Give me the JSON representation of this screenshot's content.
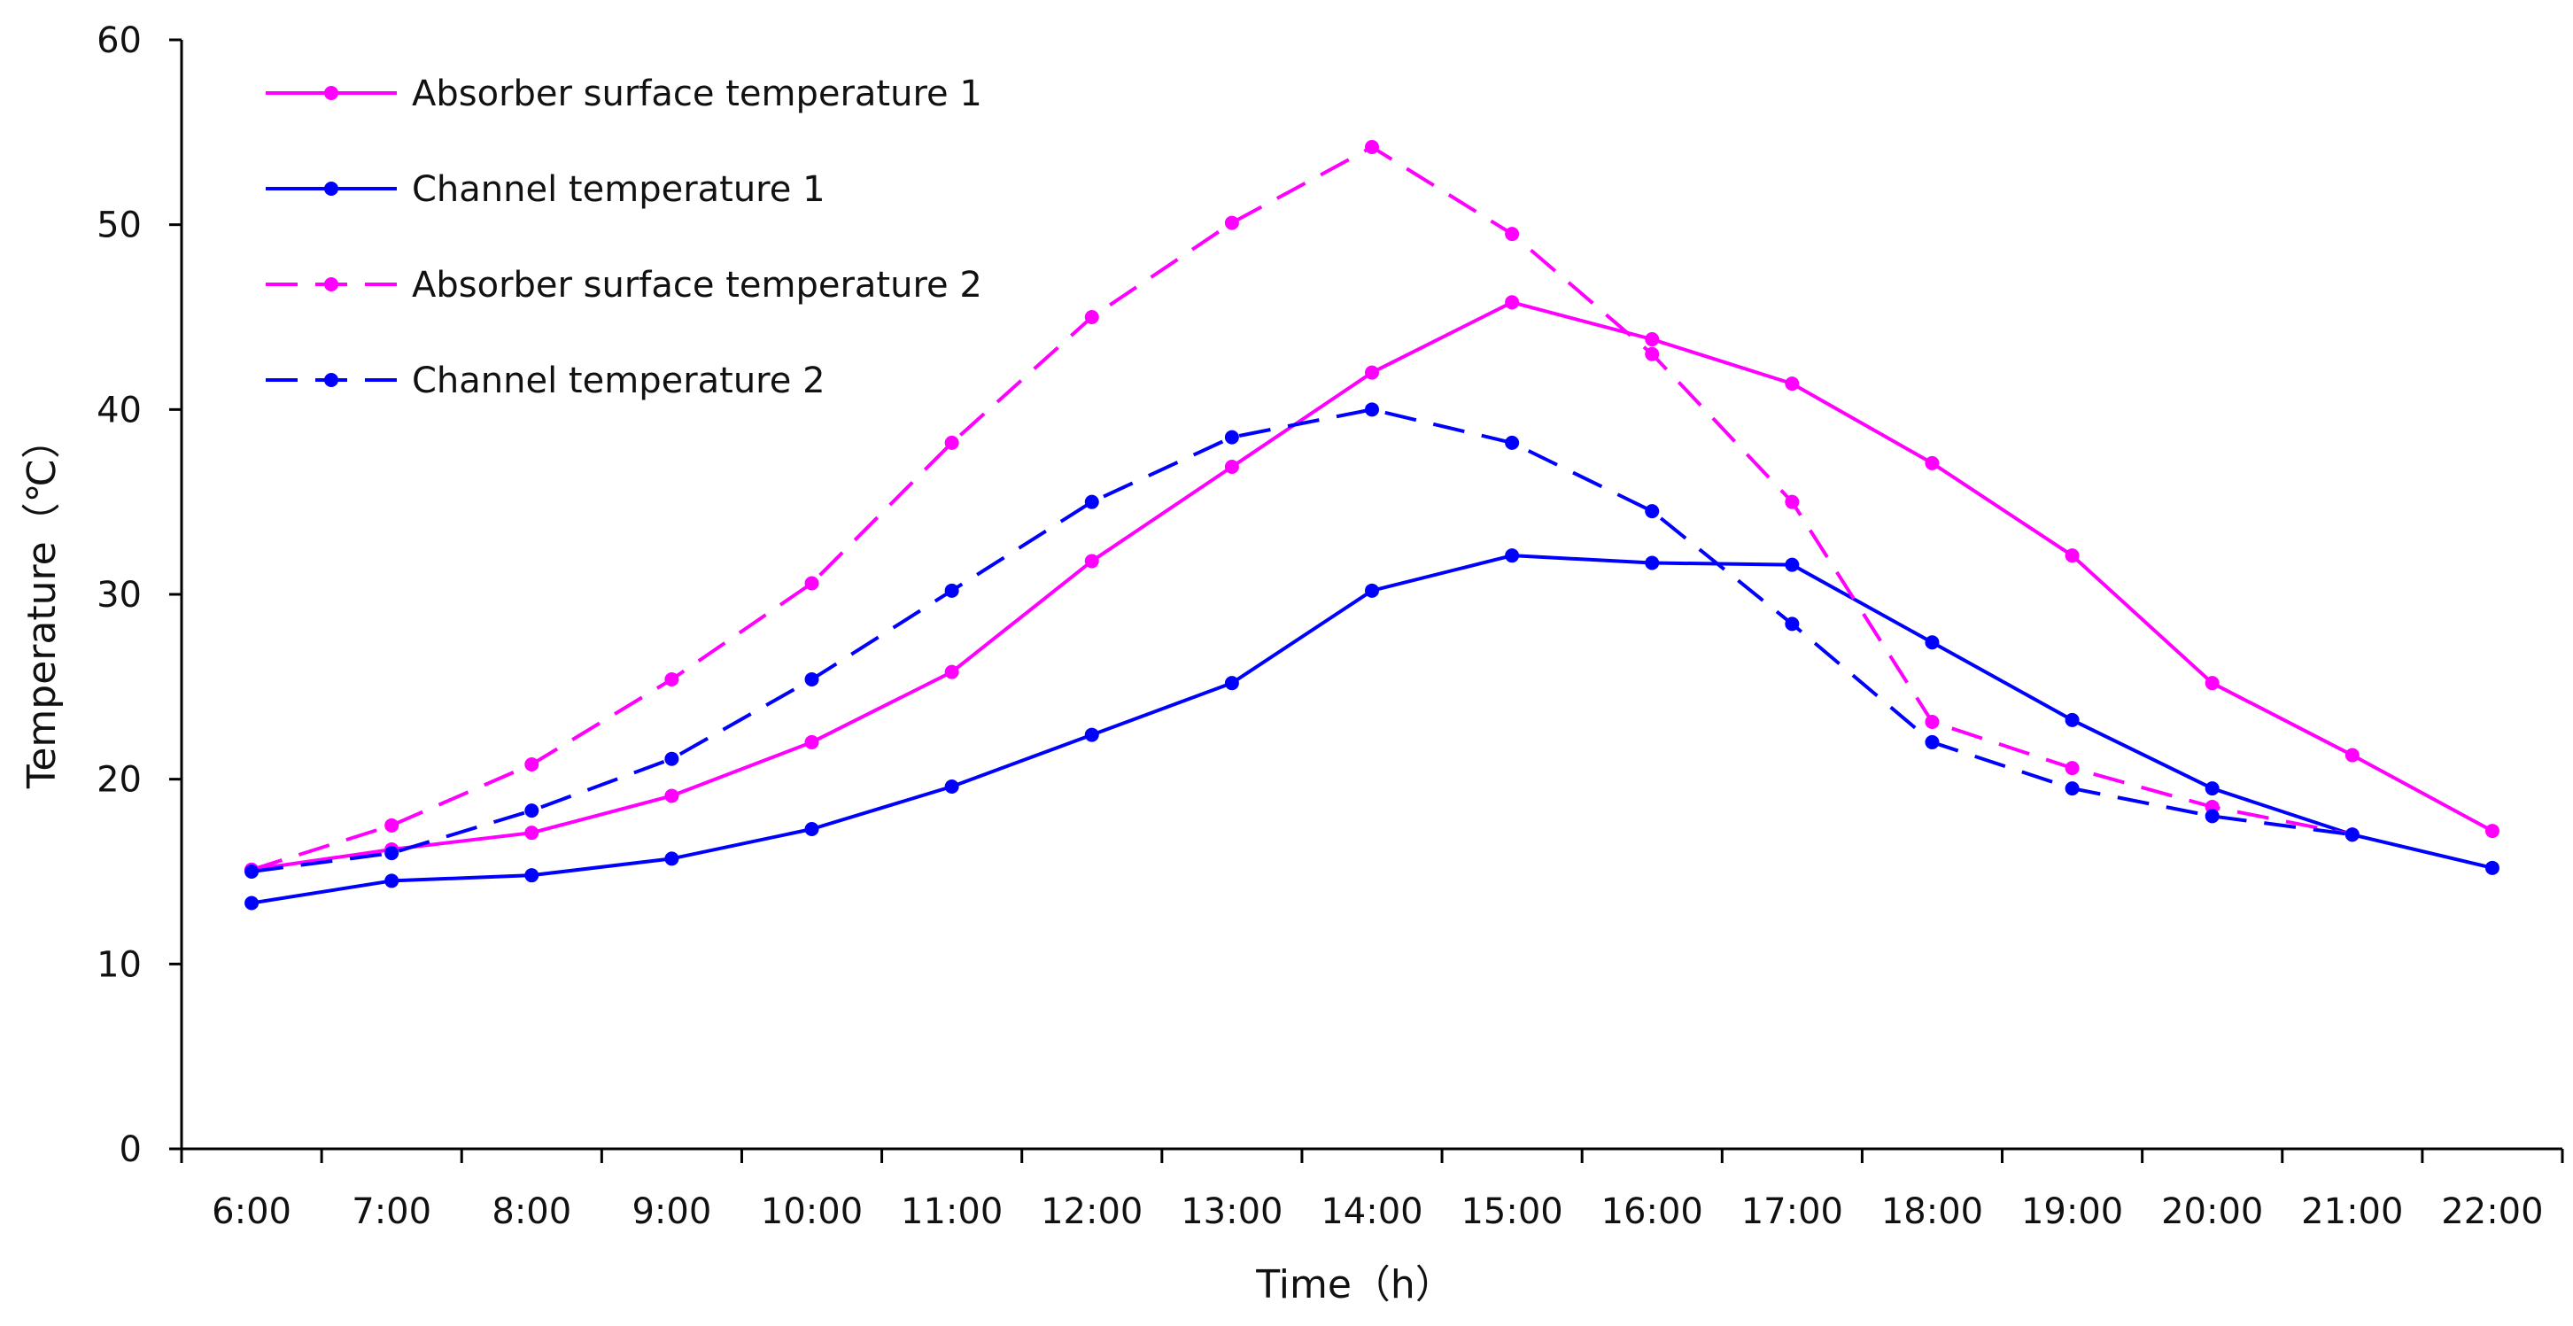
{
  "chart_data": {
    "type": "line",
    "title": "",
    "xlabel": "Time（h）",
    "ylabel": "Temperature（℃）",
    "ylim": [
      0,
      60
    ],
    "yticks": [
      "0",
      "10",
      "20",
      "30",
      "40",
      "50",
      "60"
    ],
    "grid": false,
    "legend_position": "top-left",
    "categories": [
      "6:00",
      "7:00",
      "8:00",
      "9:00",
      "10:00",
      "11:00",
      "12:00",
      "13:00",
      "14:00",
      "15:00",
      "16:00",
      "17:00",
      "18:00",
      "19:00",
      "20:00",
      "21:00",
      "22:00"
    ],
    "series": [
      {
        "name": "Absorber surface temperature 1",
        "color": "#ff00ff",
        "line_style": "solid",
        "values": [
          15.1,
          16.2,
          17.1,
          19.1,
          22.0,
          25.8,
          31.8,
          36.9,
          42.0,
          45.8,
          43.8,
          41.4,
          37.1,
          32.1,
          25.2,
          21.3,
          17.2
        ]
      },
      {
        "name": "Channel temperature 1",
        "color": "#0000ff",
        "line_style": "solid",
        "values": [
          13.3,
          14.5,
          14.8,
          15.7,
          17.3,
          19.6,
          22.4,
          25.2,
          30.2,
          32.1,
          31.7,
          31.6,
          27.4,
          23.2,
          19.5,
          17.0,
          15.2
        ]
      },
      {
        "name": "Absorber surface temperature 2",
        "color": "#ff00ff",
        "line_style": "dashed",
        "values": [
          15.1,
          17.5,
          20.8,
          25.4,
          30.6,
          38.2,
          45.0,
          50.1,
          54.2,
          49.5,
          43.0,
          35.0,
          23.1,
          20.6,
          18.5,
          17.0,
          null
        ]
      },
      {
        "name": "Channel temperature 2",
        "color": "#0000ff",
        "line_style": "dashed",
        "values": [
          15.0,
          16.0,
          18.3,
          21.1,
          25.4,
          30.2,
          35.0,
          38.5,
          40.0,
          38.2,
          34.5,
          28.4,
          22.0,
          19.5,
          18.0,
          17.0,
          null
        ]
      }
    ]
  }
}
